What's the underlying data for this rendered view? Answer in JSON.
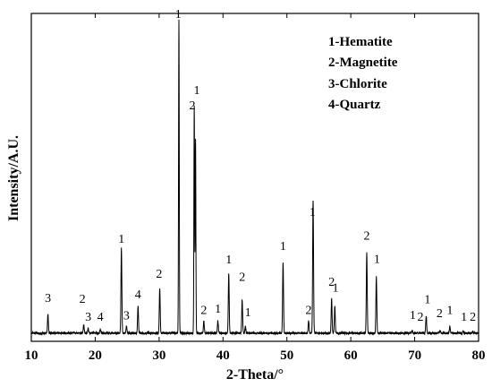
{
  "chart_data": {
    "type": "line",
    "title": "",
    "xlabel": "2-Theta/°",
    "ylabel": "Intensity/A.U.",
    "xlim": [
      10,
      80
    ],
    "ylim": [
      0,
      100
    ],
    "x_ticks": [
      10,
      20,
      30,
      40,
      50,
      60,
      70,
      80
    ],
    "grid": false,
    "legend": {
      "placement": "top-right",
      "entries": [
        "1-Hematite",
        "2-Magnetite",
        "3-Chlorite",
        "4-Quartz"
      ]
    },
    "baseline": 2.5,
    "series": [
      {
        "peaks": [
          {
            "x": 12.6,
            "y": 8.2
          },
          {
            "x": 18.2,
            "y": 5.0
          },
          {
            "x": 18.9,
            "y": 3.9
          },
          {
            "x": 20.8,
            "y": 3.8
          },
          {
            "x": 24.1,
            "y": 28.3
          },
          {
            "x": 24.9,
            "y": 4.6
          },
          {
            "x": 26.7,
            "y": 10.9
          },
          {
            "x": 30.1,
            "y": 16.3
          },
          {
            "x": 33.1,
            "y": 97.8
          },
          {
            "x": 35.5,
            "y": 72.0
          },
          {
            "x": 35.7,
            "y": 62.0
          },
          {
            "x": 37.0,
            "y": 6.1
          },
          {
            "x": 39.2,
            "y": 6.3
          },
          {
            "x": 40.9,
            "y": 20.7
          },
          {
            "x": 43.0,
            "y": 12.8
          },
          {
            "x": 43.5,
            "y": 4.5
          },
          {
            "x": 49.4,
            "y": 24.1
          },
          {
            "x": 53.4,
            "y": 6.2
          },
          {
            "x": 54.1,
            "y": 43.2
          },
          {
            "x": 57.0,
            "y": 12.9
          },
          {
            "x": 57.5,
            "y": 10.7
          },
          {
            "x": 62.5,
            "y": 27.1
          },
          {
            "x": 64.0,
            "y": 19.6
          },
          {
            "x": 69.6,
            "y": 3.3
          },
          {
            "x": 71.8,
            "y": 7.7
          },
          {
            "x": 74.0,
            "y": 3.2
          },
          {
            "x": 75.5,
            "y": 4.4
          },
          {
            "x": 77.6,
            "y": 3.1
          },
          {
            "x": 79.1,
            "y": 3.0
          }
        ]
      }
    ],
    "peak_labels": [
      {
        "text": "3",
        "x": 12.6,
        "y": 12.0
      },
      {
        "text": "2",
        "x": 18.0,
        "y": 11.7
      },
      {
        "text": "3",
        "x": 18.9,
        "y": 6.3
      },
      {
        "text": "4",
        "x": 20.8,
        "y": 6.3
      },
      {
        "text": "1",
        "x": 24.1,
        "y": 30.1
      },
      {
        "text": "3",
        "x": 24.9,
        "y": 6.7
      },
      {
        "text": "4",
        "x": 26.7,
        "y": 13.1
      },
      {
        "text": "2",
        "x": 30.0,
        "y": 19.4
      },
      {
        "text": "1",
        "x": 33.0,
        "y": 98.7
      },
      {
        "text": "2",
        "x": 35.2,
        "y": 70.8
      },
      {
        "text": "1",
        "x": 35.9,
        "y": 75.4
      },
      {
        "text": "2",
        "x": 37.0,
        "y": 8.4
      },
      {
        "text": "1",
        "x": 39.2,
        "y": 8.7
      },
      {
        "text": "1",
        "x": 40.9,
        "y": 23.8
      },
      {
        "text": "2",
        "x": 43.0,
        "y": 18.4
      },
      {
        "text": "1",
        "x": 43.9,
        "y": 7.6
      },
      {
        "text": "1",
        "x": 49.4,
        "y": 27.9
      },
      {
        "text": "2",
        "x": 53.4,
        "y": 8.4
      },
      {
        "text": "1",
        "x": 54.0,
        "y": 38.3
      },
      {
        "text": "2",
        "x": 57.0,
        "y": 16.9
      },
      {
        "text": "1",
        "x": 57.6,
        "y": 15.2
      },
      {
        "text": "2",
        "x": 62.5,
        "y": 31.0
      },
      {
        "text": "1",
        "x": 64.1,
        "y": 23.9
      },
      {
        "text": "1",
        "x": 69.7,
        "y": 6.8
      },
      {
        "text": "2",
        "x": 70.9,
        "y": 6.3
      },
      {
        "text": "1",
        "x": 72.0,
        "y": 11.6
      },
      {
        "text": "2",
        "x": 73.9,
        "y": 7.4
      },
      {
        "text": "1",
        "x": 75.5,
        "y": 8.4
      },
      {
        "text": "1",
        "x": 77.7,
        "y": 6.3
      },
      {
        "text": "2",
        "x": 79.1,
        "y": 6.3
      }
    ]
  }
}
